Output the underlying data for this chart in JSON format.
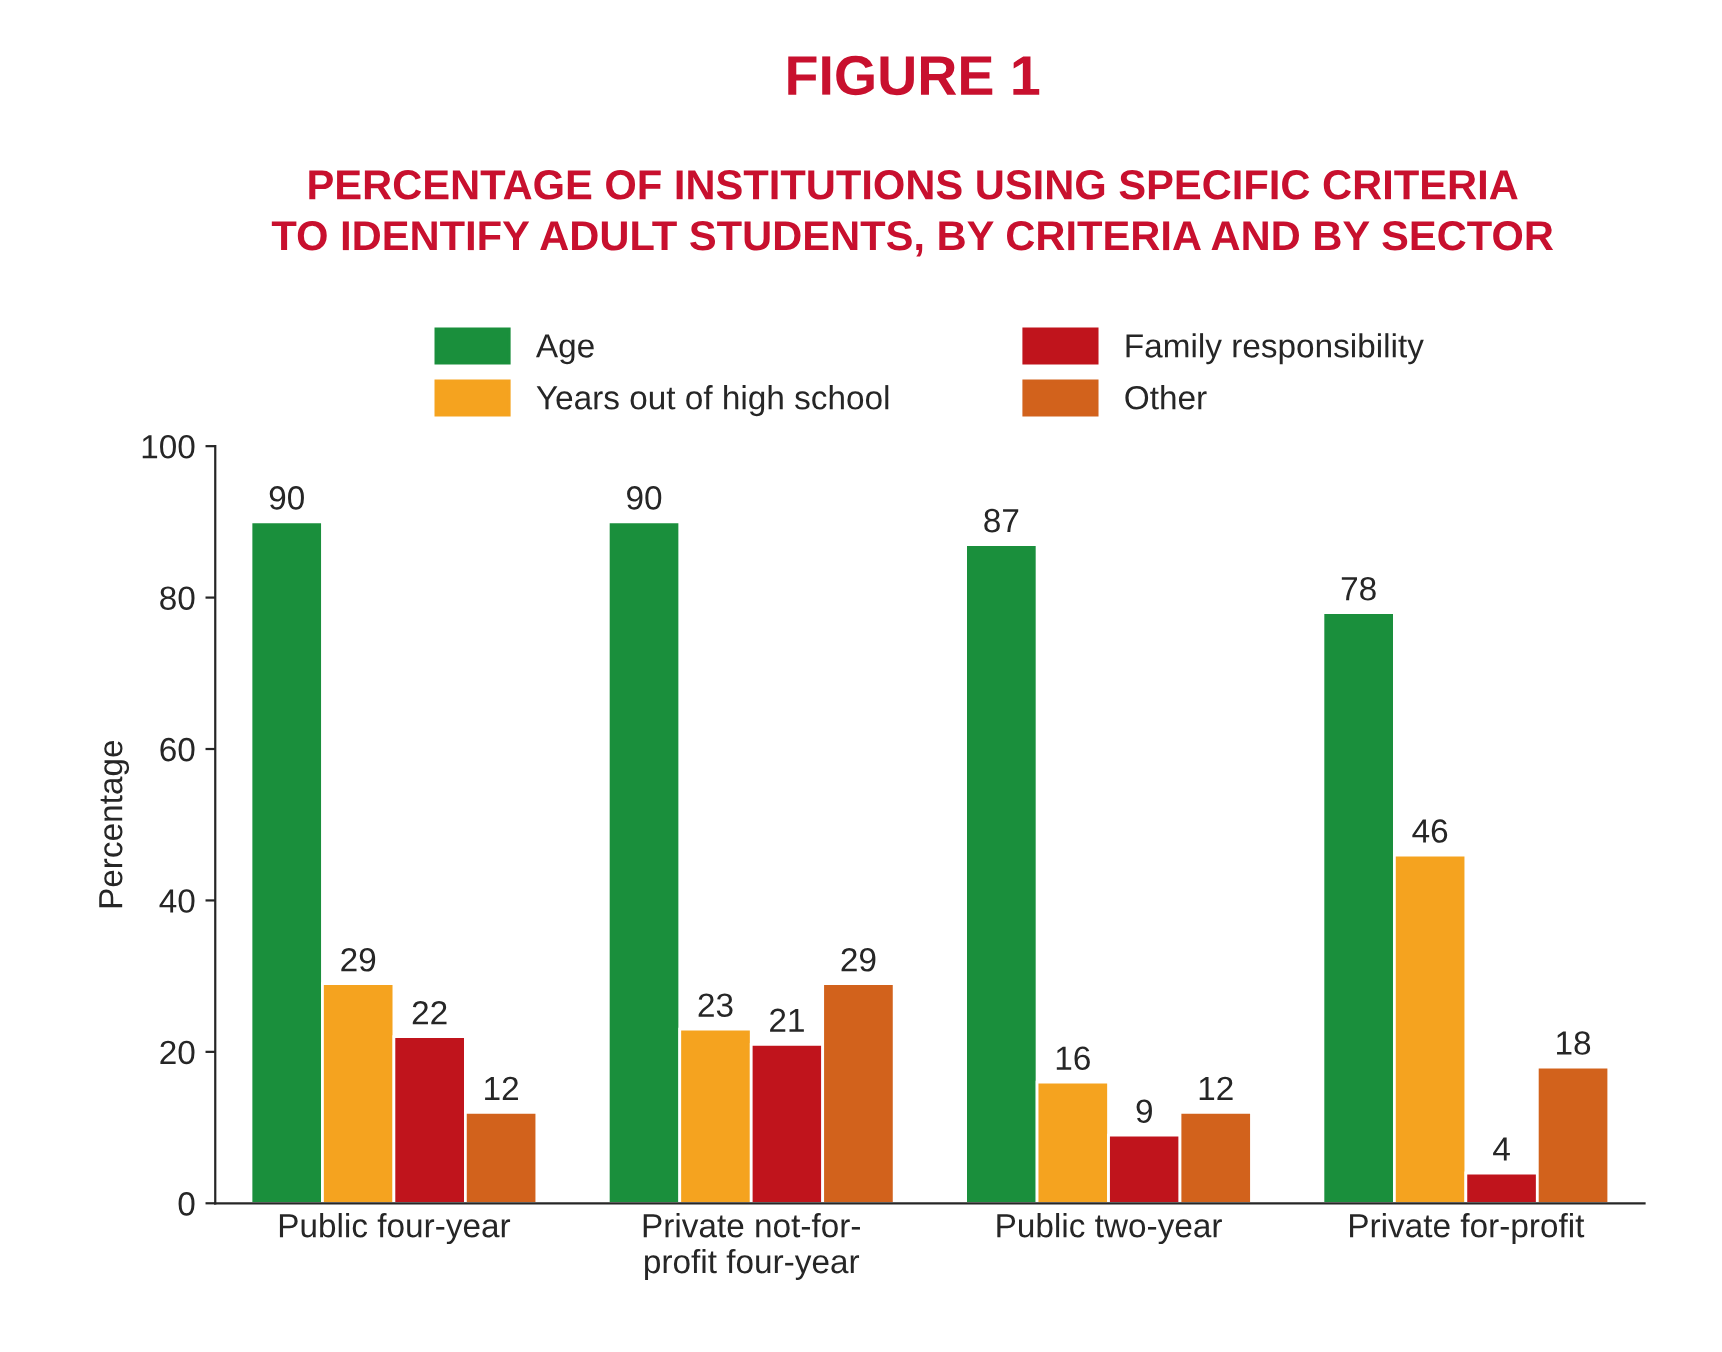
{
  "chart_data": {
    "type": "bar",
    "title": "FIGURE 1",
    "subtitle": "PERCENTAGE OF INSTITUTIONS USING SPECIFIC CRITERIA\nTO IDENTIFY ADULT STUDENTS, BY CRITERIA AND BY SECTOR",
    "ylabel": "Percentage",
    "categories": [
      "Public four-year",
      "Private not-for-\nprofit four-year",
      "Public two-year",
      "Private for-profit"
    ],
    "series": [
      {
        "name": "Age",
        "color": "#1a8f3c",
        "values": [
          90,
          90,
          87,
          78
        ]
      },
      {
        "name": "Years out of high school",
        "color": "#f5a31f",
        "values": [
          29,
          23,
          16,
          46
        ]
      },
      {
        "name": "Family responsibility",
        "color": "#c0141c",
        "values": [
          22,
          21,
          9,
          4
        ]
      },
      {
        "name": "Other",
        "color": "#d2621c",
        "values": [
          12,
          29,
          12,
          18
        ]
      }
    ],
    "ylim": [
      0,
      100
    ],
    "yticks": [
      0,
      20,
      40,
      60,
      80,
      100
    ],
    "data_labels": true,
    "legend": "top",
    "grid": false
  }
}
